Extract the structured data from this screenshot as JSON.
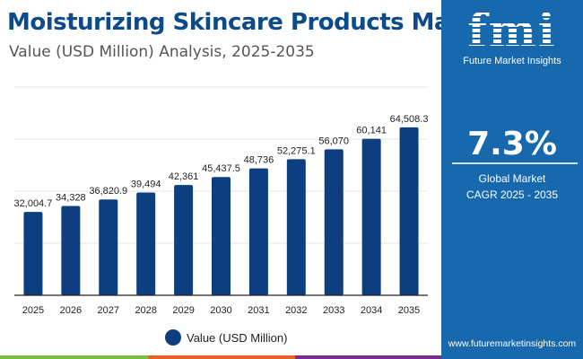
{
  "header": {
    "title": "Moisturizing Skincare Products Market",
    "subtitle": "Value (USD Million) Analysis, 2025-2035"
  },
  "panel": {
    "logo_text": "fmi",
    "brand": "Future Market Insights",
    "cagr": "7.3%",
    "cagr_label_1": "Global Market",
    "cagr_label_2": "CAGR 2025 - 2035",
    "url": "www.futuremarketinsights.com",
    "color": "#1768ad"
  },
  "chart_data": {
    "type": "bar",
    "categories": [
      "2025",
      "2026",
      "2027",
      "2028",
      "2029",
      "2030",
      "2031",
      "2032",
      "2033",
      "2034",
      "2035"
    ],
    "series": [
      {
        "name": "Value (USD Million)",
        "values": [
          32004.7,
          34328,
          36820.9,
          39494,
          42361,
          45437.5,
          48736,
          52275.1,
          56070,
          60141,
          64508.3
        ],
        "labels": [
          "32,004.7",
          "34,328",
          "36,820.9",
          "39,494",
          "42,361",
          "45,437.5",
          "48,736",
          "52,275.1",
          "56,070",
          "60,141",
          "64,508.3"
        ],
        "color": "#0d3f80"
      }
    ],
    "ylim": [
      0,
      80000
    ],
    "grid": true,
    "legend": "bottom"
  },
  "stripes": [
    "#7dbb42",
    "#e8622a",
    "#7b2d8e"
  ]
}
